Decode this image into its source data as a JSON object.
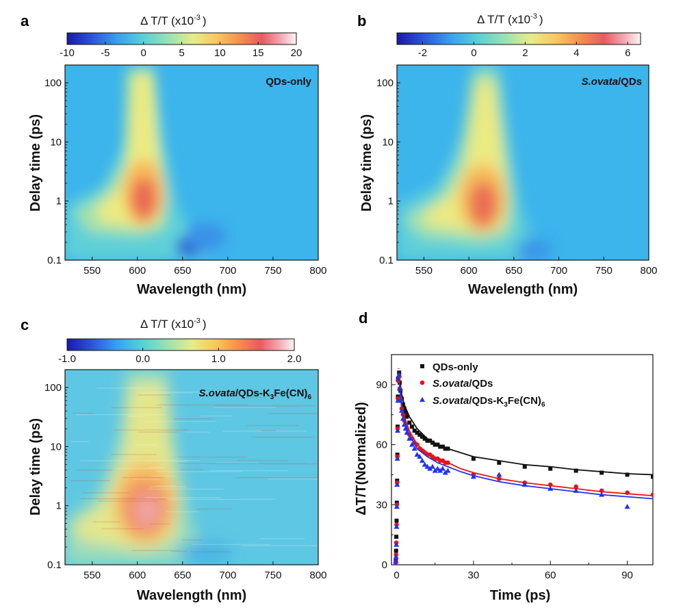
{
  "chart_data": [
    {
      "id": "a",
      "type": "heatmap",
      "panel_label": "a",
      "sample_label": "QDs-only",
      "colorbar": {
        "title": "Δ T/T (x10",
        "title_exp": "-3",
        "title_close": ")",
        "range": [
          -10,
          20
        ],
        "ticks": [
          -10,
          -5,
          0,
          5,
          10,
          15,
          20
        ],
        "tick_labels": [
          "-10",
          "-5",
          "0",
          "5",
          "10",
          "15",
          "20"
        ]
      },
      "xlabel": "Wavelength (nm)",
      "ylabel": "Delay time (ps)",
      "xlim": [
        520,
        800
      ],
      "ylim": [
        0.1,
        200
      ],
      "yscale": "log",
      "xticks": [
        "550",
        "600",
        "650",
        "700",
        "750",
        "800"
      ],
      "yticks": [
        "0.1",
        "1",
        "10",
        "100"
      ],
      "features": [
        {
          "kind": "peak",
          "center_wavelength": 605,
          "center_delay": 0.8,
          "value": 18,
          "width_nm": 28,
          "height_decades": 1.1
        },
        {
          "kind": "ridge",
          "from_wavelength": 540,
          "from_delay": 0.5,
          "to_wavelength": 605,
          "to_delay": 150,
          "value": 6
        },
        {
          "kind": "dip",
          "center_wavelength": 658,
          "center_delay": 0.16,
          "value": -4
        }
      ]
    },
    {
      "id": "b",
      "type": "heatmap",
      "panel_label": "b",
      "sample_label_italic": "S.ovata",
      "sample_label_rest": "/QDs",
      "colorbar": {
        "title": "Δ T/T (x10",
        "title_exp": "-3",
        "title_close": ")",
        "range": [
          -3,
          6.5
        ],
        "ticks": [
          -2,
          0,
          2,
          4,
          6
        ],
        "tick_labels": [
          "-2",
          "0",
          "2",
          "4",
          "6"
        ]
      },
      "xlabel": "Wavelength (nm)",
      "ylabel": "Delay time (ps)",
      "xlim": [
        520,
        800
      ],
      "ylim": [
        0.1,
        200
      ],
      "yscale": "log",
      "xticks": [
        "550",
        "600",
        "650",
        "700",
        "750",
        "800"
      ],
      "yticks": [
        "0.1",
        "1",
        "10",
        "100"
      ],
      "features": [
        {
          "kind": "peak",
          "center_wavelength": 615,
          "center_delay": 0.8,
          "value": 5.5,
          "width_nm": 30,
          "height_decades": 1.1
        },
        {
          "kind": "ridge",
          "from_wavelength": 545,
          "from_delay": 0.5,
          "to_wavelength": 612,
          "to_delay": 150,
          "value": 2
        },
        {
          "kind": "dip",
          "center_wavelength": 680,
          "center_delay": 0.15,
          "value": -1
        }
      ]
    },
    {
      "id": "c",
      "type": "heatmap",
      "panel_label": "c",
      "sample_label_italic": "S.ovata",
      "sample_label_rest": "/QDs-K",
      "sample_label_sub1": "3",
      "sample_label_mid": "Fe(CN)",
      "sample_label_sub2": "6",
      "colorbar": {
        "title": "Δ T/T (x10",
        "title_exp": "-3",
        "title_close": ")",
        "range": [
          -1.0,
          2.0
        ],
        "ticks": [
          -1.0,
          0.0,
          1.0,
          2.0
        ],
        "tick_labels": [
          "-1.0",
          "0.0",
          "1.0",
          "2.0"
        ]
      },
      "xlabel": "Wavelength (nm)",
      "ylabel": "Delay time (ps)",
      "xlim": [
        520,
        800
      ],
      "ylim": [
        0.1,
        200
      ],
      "yscale": "log",
      "xticks": [
        "550",
        "600",
        "650",
        "700",
        "750",
        "800"
      ],
      "yticks": [
        "0.1",
        "1",
        "10",
        "100"
      ],
      "features": [
        {
          "kind": "peak",
          "center_wavelength": 612,
          "center_delay": 0.7,
          "value": 1.7,
          "width_nm": 32,
          "height_decades": 1.3
        },
        {
          "kind": "ridge",
          "from_wavelength": 545,
          "from_delay": 0.4,
          "to_wavelength": 610,
          "to_delay": 150,
          "value": 0.55
        },
        {
          "kind": "dip",
          "center_wavelength": 690,
          "center_delay": 0.15,
          "value": -0.15
        }
      ]
    },
    {
      "id": "d",
      "type": "scatter",
      "panel_label": "d",
      "xlabel": "Time (ps)",
      "ylabel": "ΔT/T(Normalized)",
      "xlim": [
        -2,
        100
      ],
      "ylim": [
        0,
        105
      ],
      "xticks": [
        "0",
        "30",
        "60",
        "90"
      ],
      "yticks": [
        "0",
        "30",
        "60",
        "90"
      ],
      "grid": false,
      "legend_position": "top-right",
      "series": [
        {
          "name": "QDs-only",
          "color": "#111111",
          "marker": "square",
          "x": [
            -0.4,
            -0.3,
            -0.2,
            -0.1,
            0,
            0.1,
            0.2,
            0.3,
            0.4,
            0.5,
            0.6,
            0.8,
            1,
            1.2,
            1.5,
            2,
            2.5,
            3,
            3.5,
            4,
            5,
            6,
            7,
            8,
            9,
            10,
            11,
            12,
            13,
            14,
            15,
            16,
            17,
            18,
            19,
            20,
            30,
            40,
            50,
            60,
            70,
            80,
            90,
            100
          ],
          "y": [
            0,
            2,
            7,
            14,
            22,
            31,
            42,
            55,
            69,
            84,
            93,
            100,
            96,
            91,
            87,
            83,
            80,
            78,
            76,
            74,
            71,
            69,
            67,
            66,
            65,
            64,
            63,
            62,
            62,
            61,
            60,
            60,
            59,
            59,
            58,
            58,
            53,
            51,
            49,
            48,
            47,
            46,
            45,
            44
          ],
          "fit_x": [
            1,
            2,
            3,
            5,
            8,
            12,
            16,
            20,
            25,
            30,
            40,
            50,
            60,
            70,
            80,
            90,
            100
          ],
          "fit_y": [
            95,
            85,
            80,
            74,
            68,
            63,
            60,
            58,
            56,
            54,
            52,
            50,
            49,
            47.5,
            46.5,
            45.5,
            45
          ]
        },
        {
          "name_italic": "S.ovata",
          "name": "/QDs",
          "color": "#ee1111",
          "marker": "circle",
          "x": [
            -0.4,
            -0.3,
            -0.2,
            -0.1,
            0,
            0.1,
            0.2,
            0.3,
            0.4,
            0.5,
            0.6,
            0.8,
            1,
            1.2,
            1.5,
            2,
            2.5,
            3,
            3.5,
            4,
            5,
            6,
            7,
            8,
            9,
            10,
            11,
            12,
            13,
            14,
            15,
            16,
            17,
            18,
            19,
            20,
            30,
            40,
            50,
            60,
            70,
            80,
            90,
            100
          ],
          "y": [
            0,
            1,
            5,
            11,
            20,
            30,
            41,
            54,
            68,
            83,
            92,
            99,
            94,
            88,
            83,
            78,
            75,
            72,
            70,
            68,
            65,
            63,
            61,
            60,
            58,
            57,
            56,
            55,
            55,
            54,
            53,
            53,
            52,
            52,
            51,
            51,
            45,
            43,
            41,
            40,
            39,
            37,
            36,
            35
          ],
          "fit_x": [
            1,
            2,
            3,
            5,
            8,
            12,
            16,
            20,
            25,
            30,
            40,
            50,
            60,
            70,
            80,
            90,
            100
          ],
          "fit_y": [
            92,
            80,
            74,
            67,
            60,
            56,
            53,
            51,
            48,
            46,
            43,
            41,
            39.5,
            38,
            36.5,
            35.5,
            34.5
          ]
        },
        {
          "name_italic": "S.ovata",
          "name": "/QDs-K",
          "name_sub1": "3",
          "name_mid": "Fe(CN)",
          "name_sub2": "6",
          "color": "#2233ee",
          "marker": "triangle",
          "x": [
            -0.4,
            -0.3,
            -0.2,
            -0.1,
            0,
            0.1,
            0.2,
            0.3,
            0.4,
            0.5,
            0.6,
            0.8,
            1,
            1.2,
            1.5,
            2,
            2.5,
            3,
            3.5,
            4,
            5,
            6,
            7,
            8,
            9,
            10,
            11,
            12,
            13,
            14,
            15,
            16,
            17,
            18,
            19,
            20,
            30,
            40,
            50,
            60,
            70,
            80,
            90
          ],
          "y": [
            0,
            2,
            4,
            10,
            19,
            29,
            40,
            53,
            67,
            82,
            93,
            100,
            95,
            88,
            82,
            77,
            73,
            70,
            68,
            66,
            63,
            60,
            58,
            55,
            54,
            52,
            50,
            49,
            48,
            49,
            47,
            48,
            47,
            48,
            46,
            47,
            44,
            45,
            40,
            38,
            37,
            35,
            29
          ],
          "fit_x": [
            1,
            2,
            3,
            5,
            8,
            12,
            16,
            20,
            25,
            30,
            40,
            50,
            60,
            70,
            80,
            90,
            100
          ],
          "fit_y": [
            91,
            78,
            72,
            65,
            58,
            54,
            51,
            49,
            46.5,
            44.5,
            41.5,
            39.5,
            38,
            36.5,
            35,
            34,
            33
          ]
        }
      ]
    }
  ]
}
